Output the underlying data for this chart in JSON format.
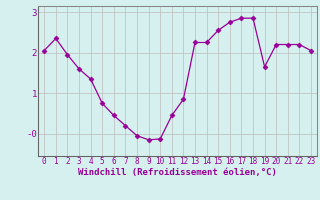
{
  "x": [
    0,
    1,
    2,
    3,
    4,
    5,
    6,
    7,
    8,
    9,
    10,
    11,
    12,
    13,
    14,
    15,
    16,
    17,
    18,
    19,
    20,
    21,
    22,
    23
  ],
  "y": [
    2.05,
    2.35,
    1.95,
    1.6,
    1.35,
    0.75,
    0.45,
    0.2,
    -0.05,
    -0.15,
    -0.13,
    0.45,
    0.85,
    2.25,
    2.25,
    2.55,
    2.75,
    2.85,
    2.85,
    1.65,
    2.2,
    2.2,
    2.2,
    2.05
  ],
  "line_color": "#990099",
  "marker": "D",
  "markersize": 2.5,
  "bg_color": "#d6f0f0",
  "grid_color": "#bbbbbb",
  "xlabel": "Windchill (Refroidissement éolien,°C)",
  "ytick_labels": [
    "-0",
    "1",
    "2",
    "3"
  ],
  "yticks": [
    0.0,
    1.0,
    2.0,
    3.0
  ],
  "ylim": [
    -0.55,
    3.15
  ],
  "xlim": [
    -0.5,
    23.5
  ],
  "xticks": [
    0,
    1,
    2,
    3,
    4,
    5,
    6,
    7,
    8,
    9,
    10,
    11,
    12,
    13,
    14,
    15,
    16,
    17,
    18,
    19,
    20,
    21,
    22,
    23
  ],
  "tick_color": "#990099",
  "label_color": "#990099",
  "tick_fontsize": 5.5,
  "xlabel_fontsize": 6.5
}
